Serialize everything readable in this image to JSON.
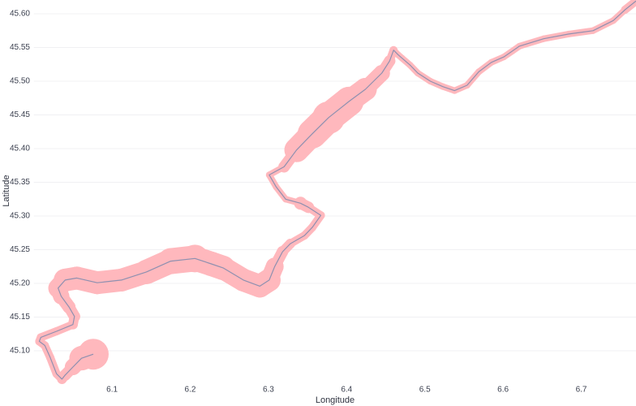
{
  "chart_data": {
    "type": "track",
    "x_label": "Longitude",
    "y_label": "Latitude",
    "band_color": "#ffb8bd",
    "line_color": "#8e90b0",
    "grid": true,
    "xlim": [
      6.0,
      6.77
    ],
    "ylim": [
      45.055,
      45.62
    ],
    "xticks": [
      6.1,
      6.2,
      6.3,
      6.4,
      6.5,
      6.6,
      6.7
    ],
    "yticks": [
      {
        "value": 45.1,
        "label": "45.10"
      },
      {
        "value": 45.15,
        "label": "45.15"
      },
      {
        "value": 45.2,
        "label": "45.20"
      },
      {
        "value": 45.25,
        "label": "45.25"
      },
      {
        "value": 45.3,
        "label": "45.30"
      },
      {
        "value": 45.35,
        "label": "45.35"
      },
      {
        "value": 45.4,
        "label": "45.40"
      },
      {
        "value": 45.45,
        "label": "45.45"
      },
      {
        "value": 45.5,
        "label": "45.50"
      },
      {
        "value": 45.55,
        "label": "45.55"
      },
      {
        "value": 45.6,
        "label": "45.60"
      }
    ],
    "x": [
      6.076,
      6.061,
      6.05,
      6.04,
      6.036,
      6.029,
      6.021,
      6.014,
      6.007,
      6.009,
      6.029,
      6.05,
      6.052,
      6.045,
      6.035,
      6.031,
      6.04,
      6.055,
      6.081,
      6.112,
      6.144,
      6.175,
      6.206,
      6.227,
      6.242,
      6.268,
      6.289,
      6.301,
      6.308,
      6.318,
      6.328,
      6.346,
      6.356,
      6.367,
      6.351,
      6.341,
      6.322,
      6.31,
      6.301,
      6.32,
      6.336,
      6.356,
      6.377,
      6.403,
      6.424,
      6.445,
      6.455,
      6.46,
      6.466,
      6.471,
      6.481,
      6.491,
      6.507,
      6.523,
      6.538,
      6.554,
      6.569,
      6.585,
      6.601,
      6.621,
      6.652,
      6.684,
      6.715,
      6.741,
      6.756,
      6.77
    ],
    "y": [
      45.095,
      45.089,
      45.076,
      45.064,
      45.058,
      45.066,
      45.09,
      45.108,
      45.114,
      45.12,
      45.129,
      45.139,
      45.151,
      45.165,
      45.181,
      45.193,
      45.205,
      45.208,
      45.201,
      45.205,
      45.217,
      45.233,
      45.237,
      45.229,
      45.223,
      45.205,
      45.196,
      45.205,
      45.225,
      45.247,
      45.259,
      45.271,
      45.283,
      45.301,
      45.313,
      45.319,
      45.325,
      45.343,
      45.361,
      45.373,
      45.398,
      45.422,
      45.446,
      45.47,
      45.488,
      45.512,
      45.53,
      45.546,
      45.539,
      45.534,
      45.524,
      45.512,
      45.5,
      45.492,
      45.486,
      45.494,
      45.514,
      45.528,
      45.536,
      45.552,
      45.563,
      45.57,
      45.575,
      45.59,
      45.606,
      45.619
    ],
    "sizes": [
      38,
      30,
      20,
      14,
      12,
      10,
      10,
      10,
      10,
      10,
      10,
      12,
      14,
      16,
      20,
      24,
      28,
      28,
      28,
      28,
      30,
      32,
      34,
      30,
      30,
      28,
      28,
      28,
      22,
      14,
      12,
      10,
      10,
      10,
      14,
      16,
      8,
      8,
      8,
      14,
      30,
      36,
      40,
      36,
      28,
      20,
      14,
      10,
      8,
      8,
      8,
      8,
      8,
      8,
      8,
      8,
      8,
      8,
      8,
      8,
      8,
      8,
      8,
      8,
      10,
      10
    ]
  }
}
